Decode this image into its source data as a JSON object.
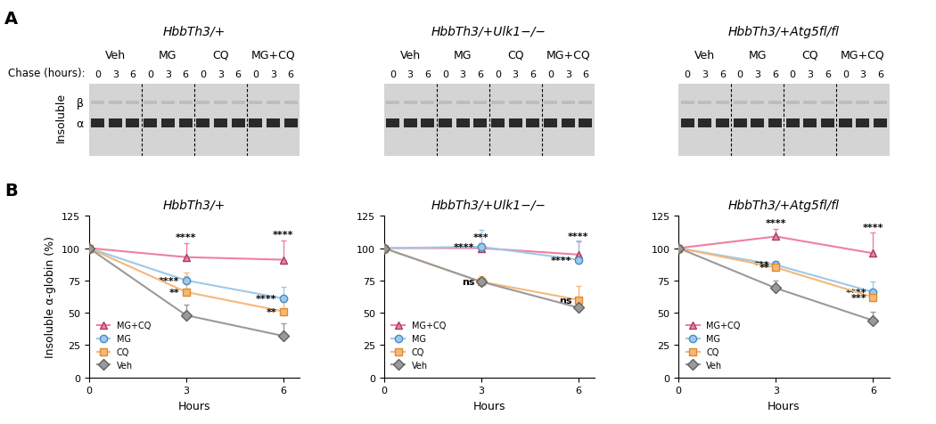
{
  "panel_labels": [
    "A",
    "B"
  ],
  "gels": {
    "row_label": "Insoluble",
    "band_labels": [
      "β",
      "α"
    ],
    "chase_label": "Chase (hours):",
    "groups": [
      "Veh",
      "MG",
      "CQ",
      "MG+CQ"
    ],
    "hours": [
      "0",
      "3",
      "6"
    ],
    "titles": [
      "HbbTh3/+",
      "HbbTh3/+Ulk1−/−",
      "HbbTh3/+Atg5fl/fl"
    ]
  },
  "chart_data": [
    {
      "type": "line",
      "title": "HbbTh3/+",
      "x_label": "Hours",
      "y_label": "Insoluble α-globin (%)",
      "x": [
        0,
        3,
        6
      ],
      "xlim": [
        0,
        6.5
      ],
      "xticks": [
        0,
        3,
        6
      ],
      "ylim": [
        0,
        125
      ],
      "yticks": [
        0,
        25,
        50,
        75,
        100,
        125
      ],
      "legend": "lower left",
      "series": [
        {
          "name": "MG+CQ",
          "color": "#f07fa0",
          "marker": "triangle",
          "values": [
            100,
            93,
            91
          ],
          "errors": [
            0,
            11,
            15
          ],
          "significance": [
            null,
            "****",
            "****"
          ]
        },
        {
          "name": "MG",
          "color": "#9ec9e8",
          "marker": "circle",
          "values": [
            100,
            75,
            61
          ],
          "errors": [
            0,
            3,
            9
          ],
          "significance": [
            null,
            "****",
            "****"
          ]
        },
        {
          "name": "CQ",
          "color": "#f5b87a",
          "marker": "square",
          "values": [
            100,
            66,
            51
          ],
          "errors": [
            0,
            15,
            8
          ],
          "significance": [
            null,
            "**",
            "**"
          ]
        },
        {
          "name": "Veh",
          "color": "#9a9a9a",
          "marker": "diamond",
          "values": [
            100,
            48,
            32
          ],
          "errors": [
            0,
            8,
            10
          ],
          "significance": [
            null,
            null,
            null
          ]
        }
      ]
    },
    {
      "type": "line",
      "title": "HbbTh3/+Ulk1−/−",
      "x_label": "Hours",
      "x": [
        0,
        3,
        6
      ],
      "xlim": [
        0,
        6.5
      ],
      "xticks": [
        0,
        3,
        6
      ],
      "ylim": [
        0,
        125
      ],
      "yticks": [
        0,
        25,
        50,
        75,
        100,
        125
      ],
      "legend": "lower left",
      "series": [
        {
          "name": "MG+CQ",
          "color": "#f07fa0",
          "marker": "triangle",
          "values": [
            100,
            100,
            95
          ],
          "errors": [
            0,
            4,
            10
          ],
          "significance": [
            null,
            "***",
            "****"
          ]
        },
        {
          "name": "MG",
          "color": "#9ec9e8",
          "marker": "circle",
          "values": [
            100,
            101,
            91
          ],
          "errors": [
            0,
            13,
            15
          ],
          "significance": [
            null,
            "****",
            "****"
          ]
        },
        {
          "name": "CQ",
          "color": "#f5b87a",
          "marker": "square",
          "values": [
            100,
            74,
            60
          ],
          "errors": [
            0,
            4,
            11
          ],
          "significance": [
            null,
            "ns",
            "ns"
          ]
        },
        {
          "name": "Veh",
          "color": "#9a9a9a",
          "marker": "diamond",
          "values": [
            100,
            74,
            54
          ],
          "errors": [
            0,
            2,
            3
          ],
          "significance": [
            null,
            null,
            null
          ]
        }
      ]
    },
    {
      "type": "line",
      "title": "HbbTh3/+Atg5fl/fl",
      "x_label": "Hours",
      "x": [
        0,
        3,
        6
      ],
      "xlim": [
        0,
        6.5
      ],
      "xticks": [
        0,
        3,
        6
      ],
      "ylim": [
        0,
        125
      ],
      "yticks": [
        0,
        25,
        50,
        75,
        100,
        125
      ],
      "legend": "lower left",
      "series": [
        {
          "name": "MG+CQ",
          "color": "#f07fa0",
          "marker": "triangle",
          "values": [
            100,
            109,
            96
          ],
          "errors": [
            0,
            6,
            16
          ],
          "significance": [
            null,
            "****",
            "****"
          ]
        },
        {
          "name": "MG",
          "color": "#9ec9e8",
          "marker": "circle",
          "values": [
            100,
            87,
            66
          ],
          "errors": [
            0,
            3,
            8
          ],
          "significance": [
            null,
            "***",
            "****"
          ]
        },
        {
          "name": "CQ",
          "color": "#f5b87a",
          "marker": "square",
          "values": [
            100,
            85,
            62
          ],
          "errors": [
            0,
            3,
            5
          ],
          "significance": [
            null,
            "**",
            "***"
          ]
        },
        {
          "name": "Veh",
          "color": "#9a9a9a",
          "marker": "diamond",
          "values": [
            100,
            69,
            44
          ],
          "errors": [
            0,
            6,
            7
          ],
          "significance": [
            null,
            null,
            null
          ]
        }
      ]
    }
  ]
}
